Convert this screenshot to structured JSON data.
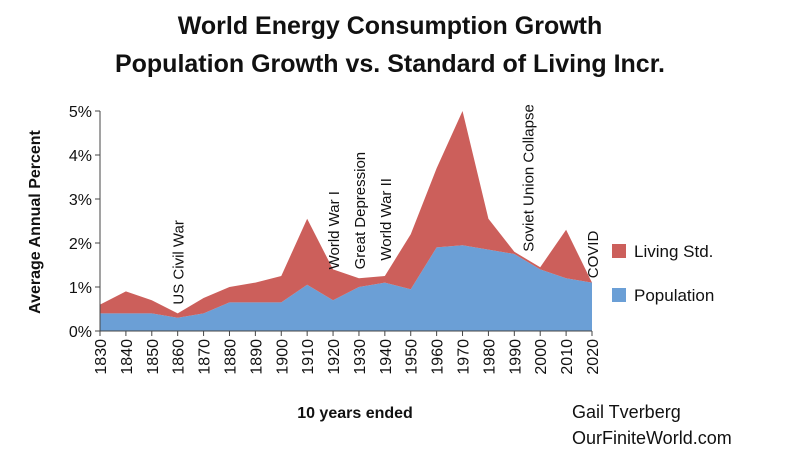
{
  "chart_data": {
    "type": "stacked_area",
    "title": [
      "World Energy Consumption Growth",
      "Population Growth vs. Standard of Living Incr."
    ],
    "x_label": "10 years ended",
    "y_label": "Average Annual Percent",
    "x": [
      1830,
      1840,
      1850,
      1860,
      1870,
      1880,
      1890,
      1900,
      1910,
      1920,
      1930,
      1940,
      1950,
      1960,
      1970,
      1980,
      1990,
      2000,
      2010,
      2020
    ],
    "series": [
      {
        "name": "Population",
        "color": "#6b9fd6",
        "values": [
          0.4,
          0.4,
          0.4,
          0.3,
          0.4,
          0.65,
          0.65,
          0.65,
          1.05,
          0.7,
          1.0,
          1.1,
          0.95,
          1.9,
          1.95,
          1.85,
          1.75,
          1.4,
          1.2,
          1.1
        ]
      },
      {
        "name": "Living Std.",
        "color": "#cc5f5b",
        "values": [
          0.2,
          0.5,
          0.3,
          0.1,
          0.35,
          0.35,
          0.45,
          0.6,
          1.5,
          0.7,
          0.2,
          0.15,
          1.25,
          1.8,
          3.05,
          0.7,
          0.05,
          0.05,
          1.1,
          0.0
        ]
      }
    ],
    "xlim": [
      1830,
      2020
    ],
    "xticks": [
      1830,
      1840,
      1850,
      1860,
      1870,
      1880,
      1890,
      1900,
      1910,
      1920,
      1930,
      1940,
      1950,
      1960,
      1970,
      1980,
      1990,
      2000,
      2010,
      2020
    ],
    "ylim": [
      0,
      5
    ],
    "yticks": [
      {
        "value": 0,
        "label": "0%"
      },
      {
        "value": 1,
        "label": "1%"
      },
      {
        "value": 2,
        "label": "2%"
      },
      {
        "value": 3,
        "label": "3%"
      },
      {
        "value": 4,
        "label": "4%"
      },
      {
        "value": 5,
        "label": "5%"
      }
    ],
    "annotations": [
      {
        "text": "US Civil War",
        "x": 1860,
        "y": 0.6
      },
      {
        "text": "World War I",
        "x": 1920,
        "y": 1.4
      },
      {
        "text": "Great Depression",
        "x": 1930,
        "y": 1.4
      },
      {
        "text": "World War II",
        "x": 1940,
        "y": 1.6
      },
      {
        "text": "Soviet Union Collapse",
        "x": 1995,
        "y": 1.8
      },
      {
        "text": "COVID",
        "x": 2020,
        "y": 1.2
      }
    ],
    "legend": "right",
    "credit": [
      "Gail Tverberg",
      "OurFiniteWorld.com"
    ]
  }
}
